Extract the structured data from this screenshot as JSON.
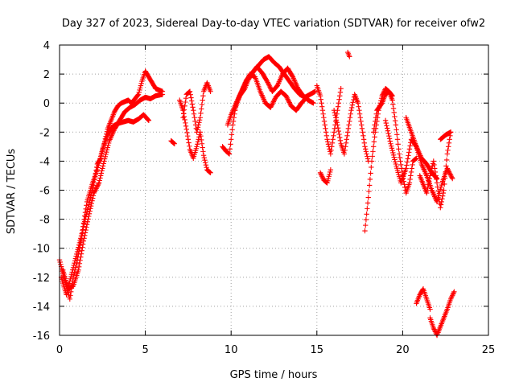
{
  "chart_data": {
    "type": "scatter",
    "title": "Day 327 of 2023, Sidereal Day-to-day VTEC variation (SDTVAR) for receiver ofw2",
    "xlabel": "GPS time / hours",
    "ylabel": "SDTVAR / TECUs",
    "xlim": [
      0,
      25
    ],
    "ylim": [
      -16,
      4
    ],
    "xticks": [
      0,
      5,
      10,
      15,
      20,
      25
    ],
    "yticks": [
      -16,
      -14,
      -12,
      -10,
      -8,
      -6,
      -4,
      -2,
      0,
      2,
      4
    ],
    "grid": true,
    "marker": "plus",
    "color": "#ff0000",
    "series": [
      {
        "name": "s1",
        "x": [
          0.0,
          0.3,
          0.6,
          0.8,
          1.0,
          1.2,
          1.4,
          1.6,
          1.8,
          2.0,
          2.2,
          2.4,
          2.6,
          2.8,
          3.0,
          3.2,
          3.4,
          3.6,
          3.8,
          4.0,
          4.2,
          4.4,
          4.6,
          4.8,
          5.0,
          5.3,
          5.6,
          6.0
        ],
        "y": [
          -10.8,
          -12.2,
          -13.5,
          -12.0,
          -11.0,
          -9.8,
          -8.5,
          -7.5,
          -6.5,
          -5.5,
          -4.2,
          -3.8,
          -2.8,
          -1.8,
          -1.2,
          -0.6,
          -0.2,
          0.0,
          0.1,
          0.2,
          0.0,
          0.3,
          0.6,
          1.5,
          2.2,
          1.6,
          1.0,
          0.8
        ]
      },
      {
        "name": "s2",
        "x": [
          0.2,
          0.5,
          0.8,
          1.1,
          1.4,
          1.7,
          2.0,
          2.3,
          2.6,
          2.9,
          3.2,
          3.5,
          3.8,
          4.1,
          4.4,
          4.7,
          5.0,
          5.3,
          5.6,
          6.0
        ],
        "y": [
          -11.5,
          -12.8,
          -12.6,
          -11.5,
          -9.5,
          -7.8,
          -6.2,
          -5.5,
          -4.0,
          -2.6,
          -1.8,
          -1.2,
          -0.6,
          -0.3,
          -0.1,
          0.2,
          0.4,
          0.3,
          0.5,
          0.6
        ]
      },
      {
        "name": "s3",
        "x": [
          0.1,
          0.4,
          0.7,
          1.0,
          1.3,
          1.6,
          1.9,
          2.2,
          2.5,
          2.8,
          3.1,
          3.4,
          3.7,
          4.0,
          4.3,
          4.6,
          4.9,
          5.2
        ],
        "y": [
          -12.0,
          -13.2,
          -11.8,
          -10.4,
          -9.0,
          -6.8,
          -5.6,
          -4.6,
          -3.2,
          -2.2,
          -1.6,
          -1.4,
          -1.3,
          -1.2,
          -1.3,
          -1.1,
          -0.8,
          -1.2
        ]
      },
      {
        "name": "s4",
        "x": [
          6.5,
          6.7
        ],
        "y": [
          -2.6,
          -2.8
        ]
      },
      {
        "name": "s5",
        "x": [
          7.0,
          7.2,
          7.4,
          7.6,
          7.8,
          8.0,
          8.2,
          8.4,
          8.6,
          8.8
        ],
        "y": [
          0.2,
          -0.5,
          -1.8,
          -3.2,
          -3.8,
          -3.0,
          -2.0,
          -3.6,
          -4.6,
          -4.8
        ]
      },
      {
        "name": "s6",
        "x": [
          7.2,
          7.4,
          7.6,
          7.8,
          8.0,
          8.2,
          8.4,
          8.6,
          8.8
        ],
        "y": [
          -1.0,
          0.6,
          0.8,
          -0.5,
          -2.0,
          -1.0,
          0.8,
          1.4,
          0.8
        ]
      },
      {
        "name": "s7",
        "x": [
          9.5,
          9.7,
          9.9,
          10.1,
          10.3,
          10.5,
          10.8,
          11.0,
          11.3,
          11.6,
          11.9,
          12.2,
          12.5,
          12.8,
          13.1,
          13.4,
          13.7,
          14.0,
          14.3,
          14.6,
          14.9
        ],
        "y": [
          -3.0,
          -3.3,
          -3.5,
          -1.5,
          0.0,
          0.5,
          1.0,
          1.6,
          2.2,
          2.6,
          3.0,
          3.2,
          2.8,
          2.5,
          2.0,
          1.5,
          1.0,
          0.6,
          0.4,
          0.6,
          0.8
        ]
      },
      {
        "name": "s8",
        "x": [
          9.8,
          10.0,
          10.3,
          10.6,
          10.9,
          11.2,
          11.5,
          11.8,
          12.1,
          12.4,
          12.7,
          13.0,
          13.3,
          13.6,
          13.9,
          14.2,
          14.5,
          14.8
        ],
        "y": [
          -1.5,
          -0.8,
          0.0,
          0.8,
          1.6,
          2.0,
          2.5,
          2.1,
          1.5,
          0.8,
          1.2,
          2.0,
          2.4,
          1.8,
          1.0,
          0.5,
          0.2,
          0.0
        ]
      },
      {
        "name": "s9",
        "x": [
          10.2,
          10.5,
          10.8,
          11.1,
          11.4,
          11.7,
          12.0,
          12.3,
          12.6,
          12.9,
          13.2,
          13.5,
          13.8,
          14.1,
          14.4
        ],
        "y": [
          -0.5,
          0.5,
          1.3,
          2.0,
          1.8,
          0.8,
          0.0,
          -0.3,
          0.4,
          0.8,
          0.5,
          -0.2,
          -0.5,
          0.0,
          0.4
        ]
      },
      {
        "name": "s10",
        "x": [
          15.0,
          15.2,
          15.4,
          15.6,
          15.8,
          16.0,
          16.2,
          16.4
        ],
        "y": [
          1.2,
          0.5,
          -1.0,
          -2.5,
          -3.5,
          -2.0,
          -0.5,
          1.0
        ]
      },
      {
        "name": "s11",
        "x": [
          15.2,
          15.4,
          15.6,
          15.8
        ],
        "y": [
          -4.8,
          -5.3,
          -5.5,
          -4.6
        ]
      },
      {
        "name": "s12",
        "x": [
          16.8,
          16.9
        ],
        "y": [
          3.5,
          3.2
        ]
      },
      {
        "name": "s13",
        "x": [
          16.0,
          16.2,
          16.4,
          16.6,
          16.8,
          17.0,
          17.2,
          17.4,
          17.6,
          17.8,
          18.0
        ],
        "y": [
          -0.5,
          -1.5,
          -2.8,
          -3.5,
          -2.0,
          -0.5,
          0.6,
          0.0,
          -1.5,
          -3.0,
          -4.0
        ]
      },
      {
        "name": "s14",
        "x": [
          17.8,
          18.0,
          18.2,
          18.4,
          18.6,
          18.8,
          19.0,
          19.2,
          19.4
        ],
        "y": [
          -8.8,
          -6.5,
          -4.0,
          -2.0,
          -0.5,
          0.5,
          1.0,
          0.8,
          0.5
        ]
      },
      {
        "name": "s15",
        "x": [
          18.3,
          18.5,
          18.8,
          19.0,
          19.2,
          19.4,
          19.6,
          19.8,
          20.0,
          20.2,
          20.4,
          20.6,
          20.8
        ],
        "y": [
          -2.0,
          -0.5,
          0.0,
          0.6,
          0.8,
          0.2,
          -1.5,
          -3.5,
          -5.0,
          -6.2,
          -5.5,
          -4.0,
          -3.8
        ]
      },
      {
        "name": "s16",
        "x": [
          19.0,
          19.3,
          19.6,
          19.9,
          20.2,
          20.5,
          20.8,
          21.1,
          21.4,
          21.7,
          22.0
        ],
        "y": [
          -1.2,
          -2.8,
          -4.2,
          -5.5,
          -4.5,
          -2.5,
          -3.0,
          -3.8,
          -4.2,
          -4.8,
          -5.2
        ]
      },
      {
        "name": "s17",
        "x": [
          20.2,
          20.5,
          20.8,
          21.1,
          21.4,
          21.7,
          22.0,
          22.3,
          22.6,
          22.9
        ],
        "y": [
          -1.0,
          -2.0,
          -3.0,
          -4.2,
          -5.0,
          -6.0,
          -6.8,
          -5.5,
          -4.5,
          -5.2
        ]
      },
      {
        "name": "s18",
        "x": [
          21.0,
          21.2,
          21.4,
          21.6,
          21.8,
          22.0,
          22.2,
          22.4,
          22.6,
          22.8
        ],
        "y": [
          -5.0,
          -5.6,
          -6.2,
          -5.0,
          -4.0,
          -5.5,
          -7.2,
          -6.0,
          -3.5,
          -2.0
        ]
      },
      {
        "name": "s19",
        "x": [
          22.2,
          22.5,
          22.8
        ],
        "y": [
          -2.5,
          -2.2,
          -2.0
        ]
      },
      {
        "name": "s20",
        "x": [
          20.8,
          21.0,
          21.2,
          21.4,
          21.6
        ],
        "y": [
          -13.8,
          -13.2,
          -12.8,
          -13.5,
          -14.2
        ]
      },
      {
        "name": "s21",
        "x": [
          21.6,
          21.8,
          22.0,
          22.2,
          22.4,
          22.6,
          22.8,
          23.0
        ],
        "y": [
          -14.8,
          -15.5,
          -16.0,
          -15.4,
          -14.8,
          -14.2,
          -13.5,
          -13.0
        ]
      }
    ]
  }
}
